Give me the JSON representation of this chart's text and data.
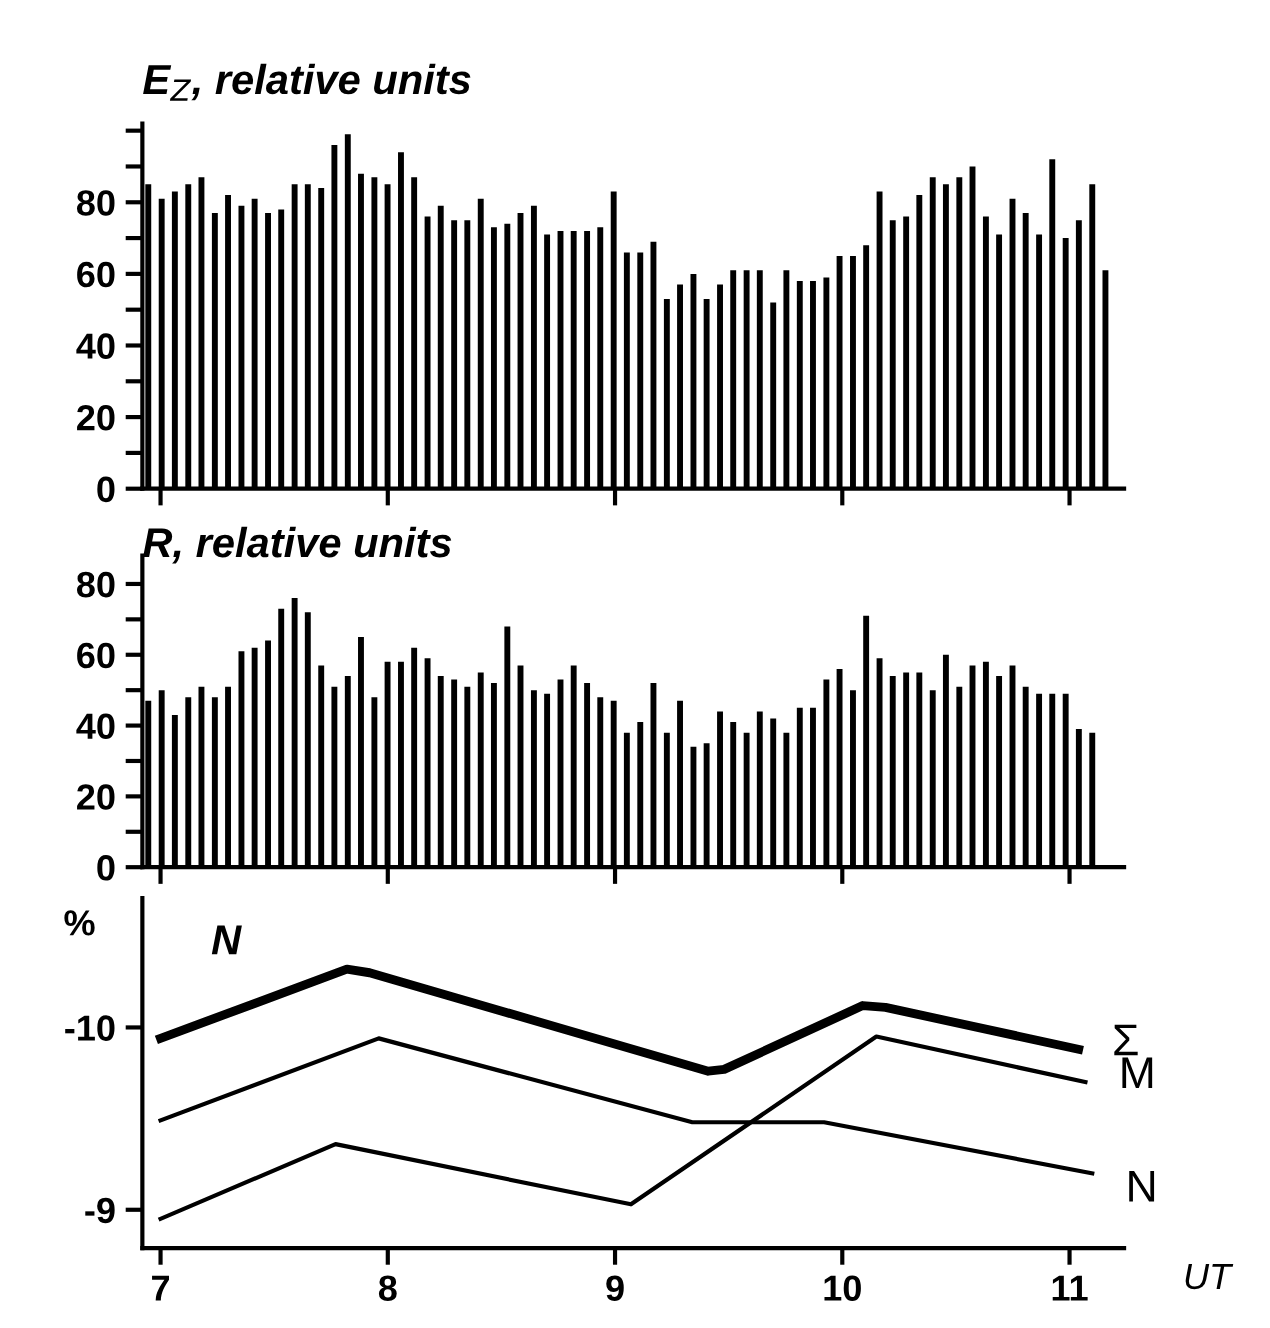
{
  "chart_data": [
    {
      "type": "bar",
      "title": "E$_{Z}$, relative units",
      "color": "#000000",
      "x": [
        6.946,
        7.005,
        7.063,
        7.122,
        7.18,
        7.239,
        7.297,
        7.356,
        7.414,
        7.473,
        7.531,
        7.59,
        7.648,
        7.707,
        7.765,
        7.824,
        7.882,
        7.941,
        7.999,
        8.058,
        8.116,
        8.175,
        8.233,
        8.292,
        8.35,
        8.409,
        8.467,
        8.526,
        8.584,
        8.643,
        8.701,
        8.76,
        8.818,
        8.877,
        8.935,
        8.994,
        9.052,
        9.111,
        9.169,
        9.228,
        9.286,
        9.345,
        9.403,
        9.462,
        9.52,
        9.579,
        9.637,
        9.696,
        9.754,
        9.813,
        9.871,
        9.93,
        9.988,
        10.047,
        10.105,
        10.164,
        10.222,
        10.281,
        10.339,
        10.398,
        10.456,
        10.515,
        10.573,
        10.632,
        10.69,
        10.749,
        10.807,
        10.866,
        10.924,
        10.983,
        11.041,
        11.1,
        11.158
      ],
      "values": [
        85,
        81,
        83,
        85,
        87,
        77,
        82,
        79,
        81,
        77,
        78,
        85,
        85,
        84,
        96,
        99,
        88,
        87,
        85,
        94,
        87,
        76,
        79,
        75,
        75,
        81,
        73,
        74,
        77,
        79,
        71,
        72,
        72,
        72,
        73,
        83,
        66,
        66,
        69,
        53,
        57,
        60,
        53,
        57,
        61,
        61,
        61,
        52,
        61,
        58,
        58,
        59,
        65,
        65,
        68,
        83,
        75,
        76,
        82,
        87,
        85,
        87,
        90,
        76,
        71,
        81,
        77,
        71,
        92,
        70,
        75,
        85,
        61
      ],
      "xlim": [
        6.92,
        11.24
      ],
      "ylim": [
        0,
        102
      ],
      "xticks": [
        {
          "value": 7,
          "label": null
        },
        {
          "value": 8,
          "label": null
        },
        {
          "value": 9,
          "label": null
        },
        {
          "value": 10,
          "label": null
        },
        {
          "value": 11,
          "label": null
        }
      ],
      "yticks": [
        0,
        {
          "value": 10,
          "label": null
        },
        20,
        {
          "value": 30,
          "label": null
        },
        40,
        {
          "value": 50,
          "label": null
        },
        60,
        {
          "value": 70,
          "label": null
        },
        80,
        {
          "value": 90,
          "label": null
        },
        {
          "value": 100,
          "label": null
        }
      ],
      "tick_labels": "y",
      "grid": false
    },
    {
      "type": "bar",
      "title": "R, relative units",
      "color": "#000000",
      "x": [
        6.946,
        7.005,
        7.063,
        7.122,
        7.18,
        7.239,
        7.297,
        7.356,
        7.414,
        7.473,
        7.531,
        7.59,
        7.648,
        7.707,
        7.765,
        7.824,
        7.882,
        7.941,
        7.999,
        8.058,
        8.116,
        8.175,
        8.233,
        8.292,
        8.35,
        8.409,
        8.467,
        8.526,
        8.584,
        8.643,
        8.701,
        8.76,
        8.818,
        8.877,
        8.935,
        8.994,
        9.052,
        9.111,
        9.169,
        9.228,
        9.286,
        9.345,
        9.403,
        9.462,
        9.52,
        9.579,
        9.637,
        9.696,
        9.754,
        9.813,
        9.871,
        9.93,
        9.988,
        10.047,
        10.105,
        10.164,
        10.222,
        10.281,
        10.339,
        10.398,
        10.456,
        10.515,
        10.573,
        10.632,
        10.69,
        10.749,
        10.807,
        10.866,
        10.924,
        10.983,
        11.041,
        11.1
      ],
      "values": [
        47,
        50,
        43,
        48,
        51,
        48,
        51,
        61,
        62,
        64,
        73,
        76,
        72,
        57,
        51,
        54,
        65,
        48,
        58,
        58,
        62,
        59,
        54,
        53,
        51,
        55,
        52,
        68,
        57,
        50,
        49,
        53,
        57,
        52,
        48,
        47,
        38,
        41,
        52,
        38,
        47,
        34,
        35,
        44,
        41,
        38,
        44,
        42,
        38,
        45,
        45,
        53,
        56,
        50,
        71,
        59,
        54,
        55,
        55,
        50,
        60,
        51,
        57,
        58,
        54,
        57,
        51,
        49,
        49,
        49,
        39,
        38
      ],
      "xlim": [
        6.92,
        11.24
      ],
      "ylim": [
        0,
        88
      ],
      "xticks": [
        {
          "value": 7,
          "label": null
        },
        {
          "value": 8,
          "label": null
        },
        {
          "value": 9,
          "label": null
        },
        {
          "value": 10,
          "label": null
        },
        {
          "value": 11,
          "label": null
        }
      ],
      "yticks": [
        0,
        {
          "value": 10,
          "label": null
        },
        20,
        {
          "value": 30,
          "label": null
        },
        40,
        {
          "value": 50,
          "label": null
        },
        60,
        {
          "value": 70,
          "label": null
        },
        80
      ],
      "tick_labels": "y",
      "grid": false
    },
    {
      "type": "line",
      "title": "N",
      "ylabel": "%",
      "xlabel": "UT",
      "series": [
        {
          "name": "Σ",
          "color": "#000000",
          "x": [
            7,
            7.82,
            7.92,
            9.41,
            9.48,
            10.09,
            10.19,
            11.04
          ],
          "values": [
            -9.94,
            -10.32,
            -10.3,
            -9.76,
            -9.77,
            -10.12,
            -10.11,
            -9.88
          ]
        },
        {
          "name": "M",
          "color": "#000000",
          "x": [
            7,
            7.77,
            9.07,
            10.15,
            11.07
          ],
          "values": [
            -8.95,
            -9.36,
            -9.03,
            -9.95,
            -9.7
          ]
        },
        {
          "name": "N",
          "color": "#000000",
          "x": [
            7,
            7.96,
            9.34,
            9.92,
            11.1
          ],
          "values": [
            -9.49,
            -9.94,
            -9.48,
            -9.48,
            -9.2
          ]
        }
      ],
      "xlim": [
        6.92,
        11.24
      ],
      "ylim": [
        -8.79,
        -10.71
      ],
      "xticks": [
        7,
        8,
        9,
        10,
        11
      ],
      "yticks": [
        -10,
        -9
      ],
      "marker": "none",
      "line_style": "solid",
      "grid": false,
      "legend": false
    }
  ]
}
